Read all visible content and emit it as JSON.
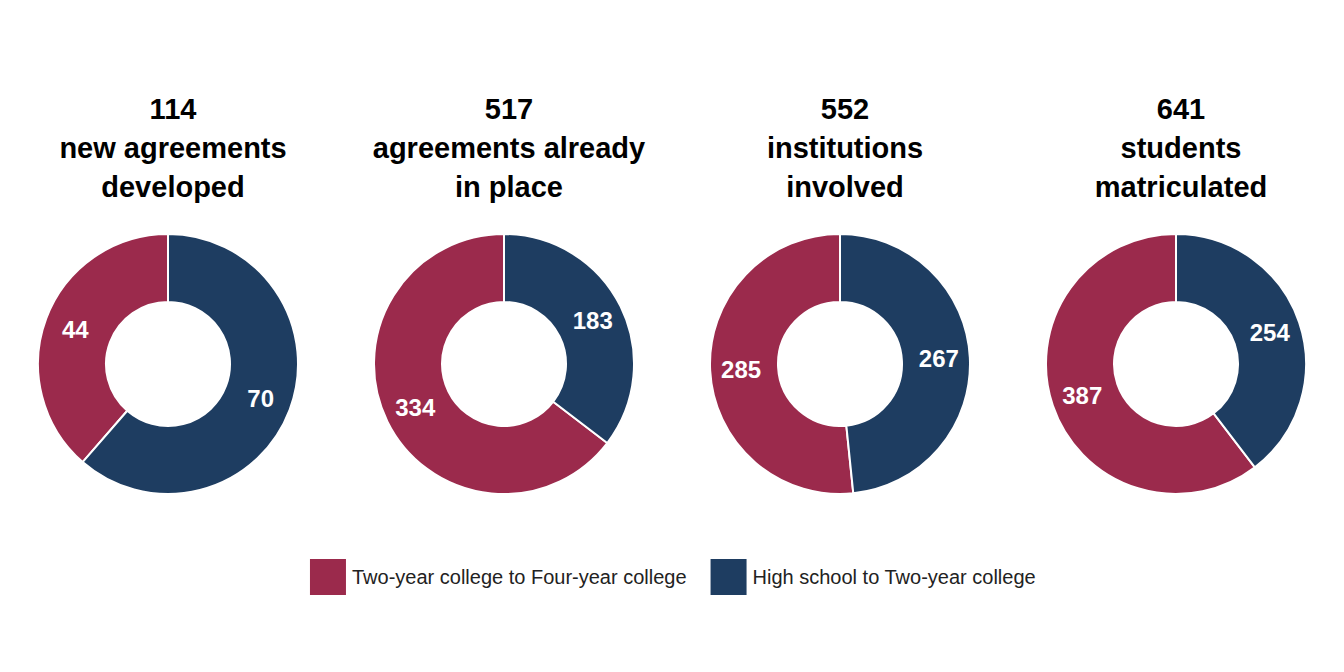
{
  "chart_data": [
    {
      "type": "pie",
      "total": 114,
      "title": "new agreements\ndeveloped",
      "categories": [
        "Two-year college to Four-year college",
        "High school to Two-year college"
      ],
      "values": [
        44,
        70
      ],
      "colors": [
        "#9b2a4c",
        "#1e3d61"
      ],
      "data_labels": true,
      "legend": "bottom"
    },
    {
      "type": "pie",
      "total": 517,
      "title": "agreements already\nin place",
      "categories": [
        "Two-year college to Four-year college",
        "High school to Two-year college"
      ],
      "values": [
        334,
        183
      ],
      "colors": [
        "#9b2a4c",
        "#1e3d61"
      ],
      "data_labels": true,
      "legend": "bottom"
    },
    {
      "type": "pie",
      "total": 552,
      "title": "institutions\ninvolved",
      "categories": [
        "Two-year college to Four-year college",
        "High school to Two-year college"
      ],
      "values": [
        285,
        267
      ],
      "colors": [
        "#9b2a4c",
        "#1e3d61"
      ],
      "data_labels": true,
      "legend": "bottom"
    },
    {
      "type": "pie",
      "total": 641,
      "title": "students\nmatriculated",
      "categories": [
        "Two-year college to Four-year college",
        "High school to Two-year college"
      ],
      "values": [
        387,
        254
      ],
      "colors": [
        "#9b2a4c",
        "#1e3d61"
      ],
      "data_labels": true,
      "legend": "bottom"
    }
  ]
}
